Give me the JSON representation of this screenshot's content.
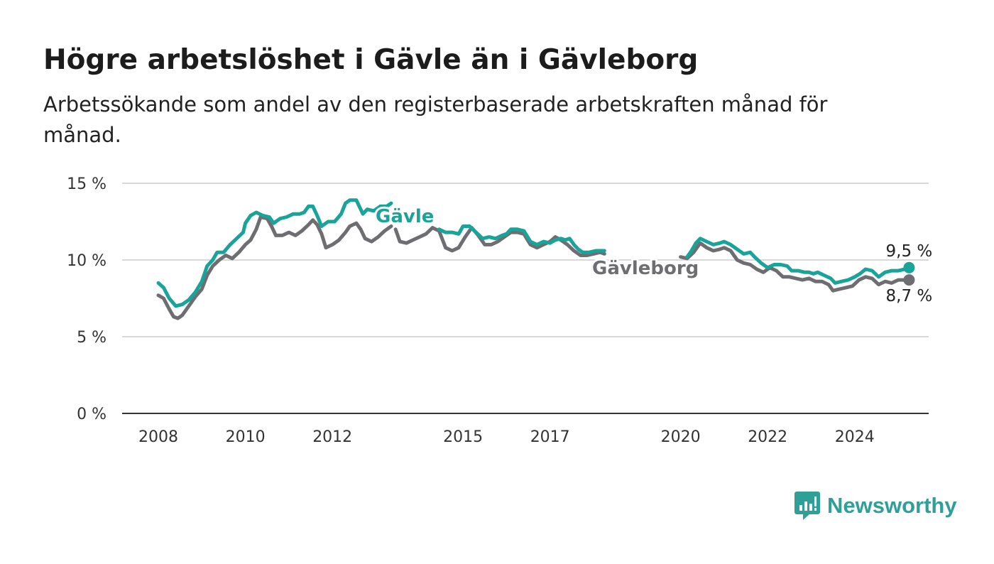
{
  "title": "Högre arbetslöshet i Gävle än i Gävleborg",
  "subtitle": "Arbetssökande som andel av den registerbaserade arbetskraften månad för månad.",
  "brand": {
    "name": "Newsworthy",
    "icon": "newsworthy-logo-icon",
    "color": "#2f9f98"
  },
  "chart_data": {
    "type": "line",
    "title": "Högre arbetslöshet i Gävle än i Gävleborg",
    "subtitle": "Arbetssökande som andel av den registerbaserade arbetskraften månad för månad.",
    "xlabel": "",
    "ylabel": "",
    "ylim": [
      0,
      15
    ],
    "xlim": [
      2008,
      2026.4
    ],
    "grid": true,
    "legend": "inline labels",
    "y_ticks": [
      {
        "value": 0,
        "label": "0 %"
      },
      {
        "value": 5,
        "label": "5 %"
      },
      {
        "value": 10,
        "label": "10 %"
      },
      {
        "value": 15,
        "label": "15 %"
      }
    ],
    "x_ticks": [
      {
        "value": 2008,
        "label": "2008"
      },
      {
        "value": 2010,
        "label": "2010"
      },
      {
        "value": 2012,
        "label": "2012"
      },
      {
        "value": 2015,
        "label": "2015"
      },
      {
        "value": 2017,
        "label": "2017"
      },
      {
        "value": 2020,
        "label": "2020"
      },
      {
        "value": 2022,
        "label": "2022"
      },
      {
        "value": 2024,
        "label": "2024"
      }
    ],
    "series": [
      {
        "name": "Gävle",
        "color": "#1aa398",
        "end_label": "9,5 %",
        "points": [
          [
            2008.0,
            8.5
          ],
          [
            2008.12,
            8.2
          ],
          [
            2008.25,
            7.5
          ],
          [
            2008.4,
            7.0
          ],
          [
            2008.55,
            7.1
          ],
          [
            2008.7,
            7.4
          ],
          [
            2008.85,
            7.9
          ],
          [
            2009.0,
            8.6
          ],
          [
            2009.12,
            9.6
          ],
          [
            2009.25,
            10.0
          ],
          [
            2009.35,
            10.5
          ],
          [
            2009.5,
            10.5
          ],
          [
            2009.65,
            11.0
          ],
          [
            2009.8,
            11.4
          ],
          [
            2009.95,
            11.8
          ],
          [
            2010.0,
            12.4
          ],
          [
            2010.12,
            12.9
          ],
          [
            2010.25,
            13.1
          ],
          [
            2010.4,
            12.9
          ],
          [
            2010.55,
            12.8
          ],
          [
            2010.65,
            12.4
          ],
          [
            2010.8,
            12.7
          ],
          [
            2010.95,
            12.8
          ],
          [
            2011.1,
            13.0
          ],
          [
            2011.25,
            13.0
          ],
          [
            2011.35,
            13.1
          ],
          [
            2011.45,
            13.5
          ],
          [
            2011.55,
            13.5
          ],
          [
            2011.65,
            12.9
          ],
          [
            2011.75,
            12.2
          ],
          [
            2011.9,
            12.5
          ],
          [
            2012.05,
            12.5
          ],
          [
            2012.2,
            13.0
          ],
          [
            2012.3,
            13.7
          ],
          [
            2012.4,
            13.9
          ],
          [
            2012.55,
            13.9
          ],
          [
            2012.7,
            13.0
          ],
          [
            2012.8,
            13.3
          ],
          [
            2012.95,
            13.2
          ],
          [
            2013.1,
            13.5
          ],
          [
            2013.25,
            13.5
          ],
          [
            2013.35,
            13.7
          ]
        ],
        "points_2": [
          [
            2014.45,
            12.0
          ],
          [
            2014.6,
            11.8
          ],
          [
            2014.75,
            11.8
          ],
          [
            2014.9,
            11.7
          ],
          [
            2015.0,
            12.2
          ],
          [
            2015.15,
            12.2
          ],
          [
            2015.3,
            11.8
          ],
          [
            2015.45,
            11.4
          ],
          [
            2015.6,
            11.5
          ],
          [
            2015.75,
            11.4
          ],
          [
            2015.9,
            11.6
          ],
          [
            2016.0,
            11.7
          ],
          [
            2016.1,
            12.0
          ],
          [
            2016.25,
            12.0
          ],
          [
            2016.4,
            11.9
          ],
          [
            2016.55,
            11.2
          ],
          [
            2016.7,
            11.0
          ],
          [
            2016.85,
            11.2
          ],
          [
            2017.0,
            11.1
          ],
          [
            2017.12,
            11.3
          ],
          [
            2017.25,
            11.4
          ],
          [
            2017.35,
            11.3
          ],
          [
            2017.45,
            11.4
          ],
          [
            2017.55,
            11.0
          ],
          [
            2017.65,
            10.7
          ],
          [
            2017.75,
            10.5
          ],
          [
            2017.9,
            10.5
          ],
          [
            2018.05,
            10.6
          ],
          [
            2018.15,
            10.6
          ],
          [
            2018.25,
            10.6
          ]
        ],
        "points_3": [
          [
            2020.15,
            10.2
          ],
          [
            2020.25,
            10.6
          ],
          [
            2020.35,
            11.1
          ],
          [
            2020.45,
            11.4
          ],
          [
            2020.6,
            11.2
          ],
          [
            2020.75,
            11.0
          ],
          [
            2020.9,
            11.1
          ],
          [
            2021.0,
            11.2
          ],
          [
            2021.15,
            11.0
          ],
          [
            2021.3,
            10.7
          ],
          [
            2021.45,
            10.4
          ],
          [
            2021.6,
            10.5
          ],
          [
            2021.7,
            10.2
          ],
          [
            2021.85,
            9.8
          ],
          [
            2022.0,
            9.5
          ],
          [
            2022.15,
            9.7
          ],
          [
            2022.3,
            9.7
          ],
          [
            2022.45,
            9.6
          ],
          [
            2022.55,
            9.3
          ],
          [
            2022.7,
            9.3
          ],
          [
            2022.85,
            9.2
          ],
          [
            2022.95,
            9.2
          ],
          [
            2023.05,
            9.1
          ],
          [
            2023.15,
            9.2
          ],
          [
            2023.3,
            9.0
          ],
          [
            2023.45,
            8.8
          ],
          [
            2023.55,
            8.5
          ],
          [
            2023.7,
            8.6
          ],
          [
            2023.85,
            8.7
          ],
          [
            2024.0,
            8.9
          ],
          [
            2024.12,
            9.1
          ],
          [
            2024.25,
            9.4
          ],
          [
            2024.4,
            9.3
          ],
          [
            2024.55,
            8.9
          ],
          [
            2024.7,
            9.2
          ],
          [
            2024.85,
            9.3
          ],
          [
            2025.0,
            9.3
          ],
          [
            2025.15,
            9.4
          ],
          [
            2025.25,
            9.5
          ]
        ]
      },
      {
        "name": "Gävleborg",
        "color": "#6e6d72",
        "end_label": "8,7 %",
        "points": [
          [
            2008.0,
            7.7
          ],
          [
            2008.12,
            7.5
          ],
          [
            2008.25,
            6.8
          ],
          [
            2008.35,
            6.3
          ],
          [
            2008.45,
            6.2
          ],
          [
            2008.55,
            6.4
          ],
          [
            2008.7,
            7.0
          ],
          [
            2008.85,
            7.6
          ],
          [
            2009.0,
            8.1
          ],
          [
            2009.12,
            9.0
          ],
          [
            2009.25,
            9.6
          ],
          [
            2009.4,
            10.0
          ],
          [
            2009.55,
            10.3
          ],
          [
            2009.7,
            10.1
          ],
          [
            2009.85,
            10.5
          ],
          [
            2010.0,
            11.0
          ],
          [
            2010.12,
            11.3
          ],
          [
            2010.25,
            12.0
          ],
          [
            2010.35,
            12.8
          ],
          [
            2010.5,
            12.7
          ],
          [
            2010.6,
            12.2
          ],
          [
            2010.7,
            11.6
          ],
          [
            2010.85,
            11.6
          ],
          [
            2011.0,
            11.8
          ],
          [
            2011.15,
            11.6
          ],
          [
            2011.3,
            11.9
          ],
          [
            2011.45,
            12.3
          ],
          [
            2011.55,
            12.6
          ],
          [
            2011.65,
            12.3
          ],
          [
            2011.75,
            11.7
          ],
          [
            2011.85,
            10.8
          ],
          [
            2012.0,
            11.0
          ],
          [
            2012.15,
            11.3
          ],
          [
            2012.3,
            11.8
          ],
          [
            2012.4,
            12.2
          ],
          [
            2012.55,
            12.4
          ],
          [
            2012.65,
            12.0
          ],
          [
            2012.75,
            11.4
          ],
          [
            2012.9,
            11.2
          ],
          [
            2013.05,
            11.5
          ],
          [
            2013.2,
            11.9
          ],
          [
            2013.35,
            12.2
          ]
        ],
        "points_2": [
          [
            2013.45,
            12.0
          ],
          [
            2013.55,
            11.2
          ],
          [
            2013.7,
            11.1
          ],
          [
            2013.85,
            11.3
          ],
          [
            2014.0,
            11.5
          ],
          [
            2014.15,
            11.7
          ],
          [
            2014.3,
            12.1
          ],
          [
            2014.45,
            11.9
          ],
          [
            2014.6,
            10.8
          ],
          [
            2014.75,
            10.6
          ],
          [
            2014.9,
            10.8
          ],
          [
            2015.05,
            11.5
          ],
          [
            2015.2,
            12.1
          ],
          [
            2015.35,
            11.6
          ],
          [
            2015.5,
            11.0
          ],
          [
            2015.65,
            11.0
          ],
          [
            2015.8,
            11.2
          ],
          [
            2015.95,
            11.5
          ],
          [
            2016.1,
            11.8
          ],
          [
            2016.25,
            11.8
          ],
          [
            2016.4,
            11.7
          ],
          [
            2016.55,
            11.0
          ],
          [
            2016.7,
            10.8
          ],
          [
            2016.85,
            11.0
          ],
          [
            2017.0,
            11.2
          ],
          [
            2017.12,
            11.5
          ],
          [
            2017.25,
            11.3
          ],
          [
            2017.4,
            11.0
          ],
          [
            2017.55,
            10.6
          ],
          [
            2017.7,
            10.3
          ],
          [
            2017.85,
            10.3
          ],
          [
            2018.0,
            10.4
          ],
          [
            2018.15,
            10.5
          ],
          [
            2018.25,
            10.4
          ]
        ],
        "points_3": [
          [
            2020.0,
            10.2
          ],
          [
            2020.15,
            10.1
          ],
          [
            2020.3,
            10.5
          ],
          [
            2020.45,
            11.1
          ],
          [
            2020.6,
            10.8
          ],
          [
            2020.75,
            10.6
          ],
          [
            2020.9,
            10.7
          ],
          [
            2021.0,
            10.8
          ],
          [
            2021.15,
            10.6
          ],
          [
            2021.3,
            10.0
          ],
          [
            2021.45,
            9.8
          ],
          [
            2021.6,
            9.7
          ],
          [
            2021.75,
            9.4
          ],
          [
            2021.9,
            9.2
          ],
          [
            2022.05,
            9.5
          ],
          [
            2022.2,
            9.3
          ],
          [
            2022.35,
            8.9
          ],
          [
            2022.5,
            8.9
          ],
          [
            2022.65,
            8.8
          ],
          [
            2022.8,
            8.7
          ],
          [
            2022.95,
            8.8
          ],
          [
            2023.1,
            8.6
          ],
          [
            2023.25,
            8.6
          ],
          [
            2023.4,
            8.4
          ],
          [
            2023.5,
            8.0
          ],
          [
            2023.65,
            8.1
          ],
          [
            2023.8,
            8.2
          ],
          [
            2023.95,
            8.3
          ],
          [
            2024.1,
            8.7
          ],
          [
            2024.25,
            8.9
          ],
          [
            2024.4,
            8.8
          ],
          [
            2024.55,
            8.4
          ],
          [
            2024.7,
            8.6
          ],
          [
            2024.85,
            8.5
          ],
          [
            2025.0,
            8.7
          ],
          [
            2025.15,
            8.7
          ],
          [
            2025.25,
            8.7
          ]
        ]
      }
    ]
  }
}
